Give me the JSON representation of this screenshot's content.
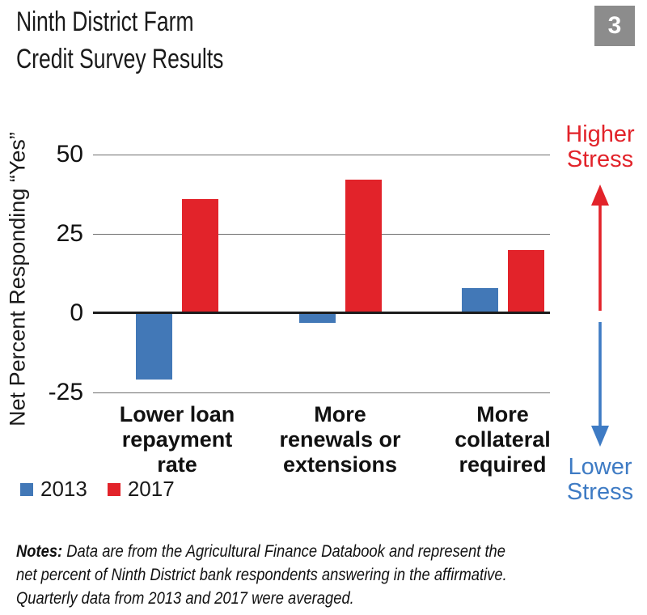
{
  "figure": {
    "title_line1": "Ninth District Farm",
    "title_line2": "Credit Survey Results",
    "page_badge": "3",
    "badge_color": "#8C8C8C"
  },
  "chart_data": {
    "type": "bar",
    "title": "Ninth District Farm Credit Survey Results",
    "categories": [
      "Lower loan repayment rate",
      "More renewals or extensions",
      "More collateral required"
    ],
    "category_lines": [
      [
        "Lower loan",
        "repayment",
        "rate"
      ],
      [
        "More",
        "renewals or",
        "extensions"
      ],
      [
        "More",
        "collateral",
        "required"
      ]
    ],
    "series": [
      {
        "name": "2013",
        "color": "#4278B7",
        "values": [
          -21,
          -3,
          8
        ]
      },
      {
        "name": "2017",
        "color": "#E2232A",
        "values": [
          36,
          42,
          20
        ]
      }
    ],
    "ylabel": "Net Percent Responding “Yes”",
    "yticks": [
      50,
      25,
      0,
      -25
    ],
    "ylim": [
      -30,
      60
    ],
    "grid": true,
    "legend_position": "bottom-left"
  },
  "annotations": {
    "higher_stress": {
      "line1": "Higher",
      "line2": "Stress",
      "color": "#E2232A"
    },
    "lower_stress": {
      "line1": "Lower",
      "line2": "Stress",
      "color": "#3E7BC4"
    }
  },
  "notes": {
    "label": "Notes:",
    "line1": "Data are from the Agricultural Finance Databook and represent the",
    "line2": "net percent of Ninth District bank respondents answering in the affirmative.",
    "line3": "Quarterly data from 2013 and 2017 were averaged."
  }
}
